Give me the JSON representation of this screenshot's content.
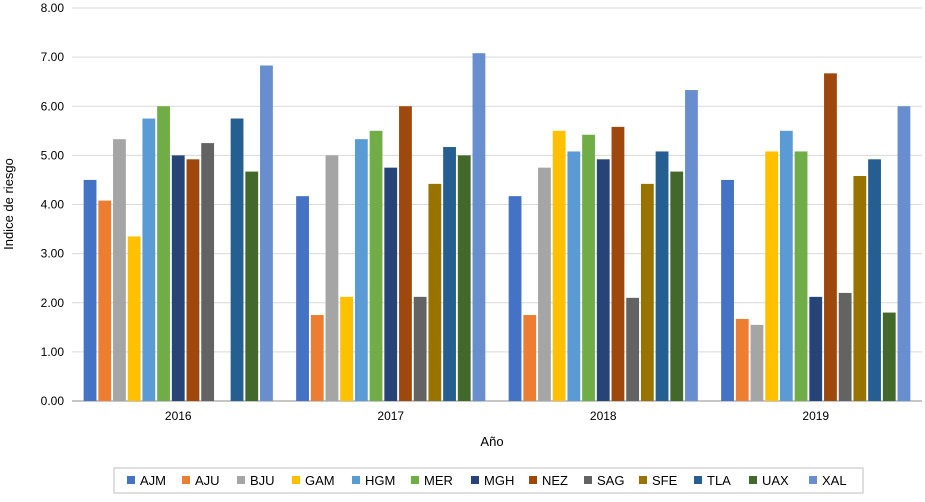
{
  "chart_data": {
    "type": "bar",
    "title": "",
    "xlabel": "Año",
    "ylabel": "Indice de riesgo",
    "ylim": [
      0,
      8
    ],
    "yticks": [
      "0.00",
      "1.00",
      "2.00",
      "3.00",
      "4.00",
      "5.00",
      "6.00",
      "7.00",
      "8.00"
    ],
    "grid": true,
    "legend_position": "bottom",
    "categories": [
      "2016",
      "2017",
      "2018",
      "2019"
    ],
    "series": [
      {
        "name": "AJM",
        "color": "#4472C4",
        "values": [
          4.5,
          4.17,
          4.17,
          4.5
        ]
      },
      {
        "name": "AJU",
        "color": "#ED7D31",
        "values": [
          4.08,
          1.75,
          1.75,
          1.67
        ]
      },
      {
        "name": "BJU",
        "color": "#A5A5A5",
        "values": [
          5.33,
          5.0,
          4.75,
          1.55
        ]
      },
      {
        "name": "GAM",
        "color": "#FFC000",
        "values": [
          3.35,
          2.12,
          5.5,
          5.08
        ]
      },
      {
        "name": "HGM",
        "color": "#5B9BD5",
        "values": [
          5.75,
          5.33,
          5.08,
          5.5
        ]
      },
      {
        "name": "MER",
        "color": "#70AD47",
        "values": [
          6.0,
          5.5,
          5.42,
          5.08
        ]
      },
      {
        "name": "MGH",
        "color": "#264478",
        "values": [
          5.0,
          4.75,
          4.92,
          2.12
        ]
      },
      {
        "name": "NEZ",
        "color": "#9E480E",
        "values": [
          4.92,
          6.0,
          5.58,
          6.67
        ]
      },
      {
        "name": "SAG",
        "color": "#636363",
        "values": [
          5.25,
          2.12,
          2.1,
          2.2
        ]
      },
      {
        "name": "SFE",
        "color": "#997300",
        "values": [
          null,
          4.42,
          4.42,
          4.58
        ]
      },
      {
        "name": "TLA",
        "color": "#255E91",
        "values": [
          5.75,
          5.17,
          5.08,
          4.92
        ]
      },
      {
        "name": "UAX",
        "color": "#43682B",
        "values": [
          4.67,
          5.0,
          4.67,
          1.8
        ]
      },
      {
        "name": "XAL",
        "color": "#698ED0",
        "values": [
          6.83,
          7.08,
          6.33,
          6.0
        ]
      }
    ]
  }
}
